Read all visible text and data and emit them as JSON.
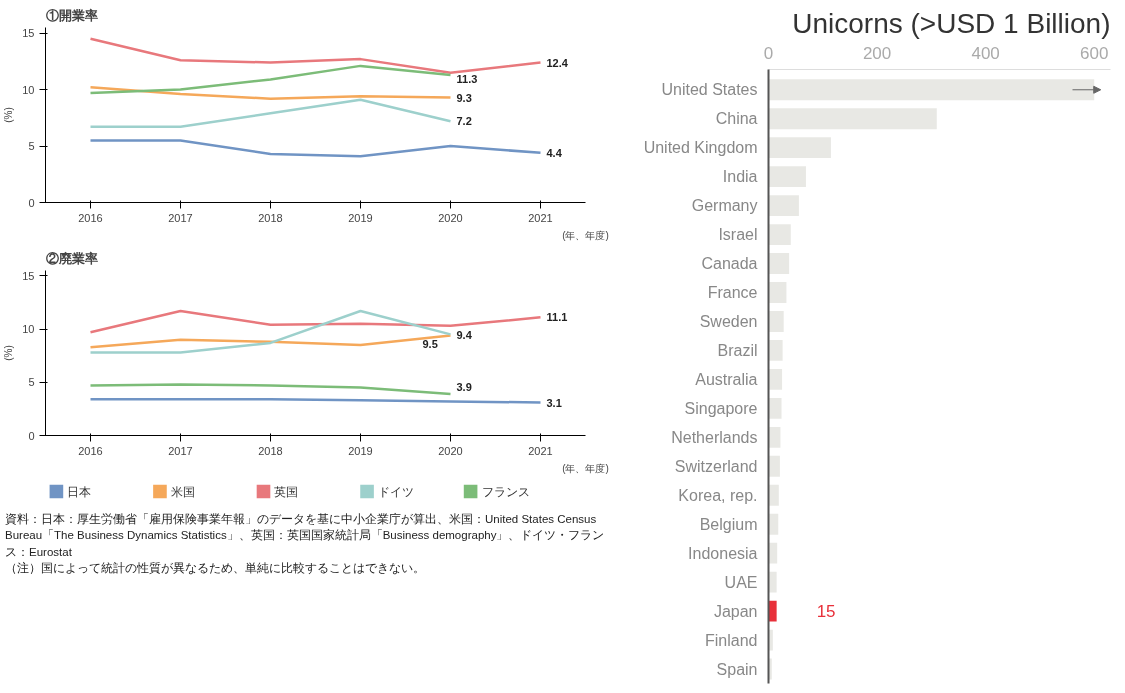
{
  "chart_data": [
    {
      "type": "line",
      "title": "①開業率",
      "ylabel": "(%)",
      "xlabel": "(年、年度)",
      "categories": [
        "2016",
        "2017",
        "2018",
        "2019",
        "2020",
        "2021"
      ],
      "ylim": [
        0,
        15.5
      ],
      "yticks": [
        0,
        5,
        10,
        15
      ],
      "legend": false,
      "grid": false,
      "series": [
        {
          "color": "#7094c4",
          "values": [
            5.5,
            5.5,
            4.3,
            4.1,
            5.0,
            4.4
          ],
          "value_labels": [
            null,
            null,
            null,
            null,
            null,
            "4.4"
          ]
        },
        {
          "color": "#f5a85a",
          "values": [
            10.2,
            9.6,
            9.2,
            9.4,
            9.3,
            null
          ],
          "value_labels": [
            null,
            null,
            null,
            null,
            "9.3",
            null
          ]
        },
        {
          "color": "#e8787c",
          "values": [
            14.5,
            12.6,
            12.4,
            12.7,
            11.5,
            12.4
          ],
          "value_labels": [
            null,
            null,
            null,
            null,
            null,
            "12.4"
          ]
        },
        {
          "color": "#9dd0cc",
          "values": [
            6.7,
            6.7,
            7.9,
            9.1,
            7.2,
            null
          ],
          "value_labels": [
            null,
            null,
            null,
            null,
            "7.2",
            null
          ]
        },
        {
          "color": "#7cbc78",
          "values": [
            9.7,
            10.0,
            10.9,
            12.1,
            11.3,
            null
          ],
          "value_labels": [
            null,
            null,
            null,
            null,
            "11.3",
            null
          ]
        }
      ]
    },
    {
      "type": "line",
      "title": "②廃業率",
      "ylabel": "(%)",
      "xlabel": "(年、年度)",
      "categories": [
        "2016",
        "2017",
        "2018",
        "2019",
        "2020",
        "2021"
      ],
      "ylim": [
        0,
        15.5
      ],
      "yticks": [
        0,
        5,
        10,
        15
      ],
      "legend": "bottom",
      "grid": false,
      "annotations": [
        "資料：日本：厚生労働省「雇用保険事業年報」のデータを基に中小企業庁が算出、米国：United States Census Bureau「The Business Dynamics Statistics」、英国：英国国家統計局「Business demography」、ドイツ・フランス：Eurostat",
        "（注）国によって統計の性質が異なるため、単純に比較することはできない。"
      ],
      "series": [
        {
          "name": "日本",
          "color": "#7094c4",
          "values": [
            3.4,
            3.4,
            3.4,
            3.3,
            3.2,
            3.1
          ],
          "value_labels": [
            null,
            null,
            null,
            null,
            null,
            "3.1"
          ]
        },
        {
          "name": "米国",
          "color": "#f5a85a",
          "values": [
            8.3,
            9.0,
            8.8,
            8.5,
            9.4,
            null
          ],
          "value_labels": [
            null,
            null,
            null,
            null,
            "9.4",
            null
          ]
        },
        {
          "name": "英国",
          "color": "#e8787c",
          "values": [
            9.7,
            11.7,
            10.4,
            10.5,
            10.3,
            11.1
          ],
          "value_labels": [
            null,
            null,
            null,
            null,
            null,
            "11.1"
          ]
        },
        {
          "name": "ドイツ",
          "color": "#9dd0cc",
          "values": [
            7.8,
            7.8,
            8.7,
            11.7,
            9.5,
            null
          ],
          "value_labels": [
            null,
            null,
            null,
            null,
            "9.5",
            null
          ]
        },
        {
          "name": "フランス",
          "color": "#7cbc78",
          "values": [
            4.7,
            4.8,
            4.7,
            4.5,
            3.9,
            null
          ],
          "value_labels": [
            null,
            null,
            null,
            null,
            "3.9",
            null
          ]
        }
      ]
    },
    {
      "type": "bar",
      "orientation": "horizontal",
      "title": "Unicorns (>USD 1 Billion)",
      "categories": [
        "United States",
        "China",
        "United Kingdom",
        "India",
        "Germany",
        "Israel",
        "Canada",
        "France",
        "Sweden",
        "Brazil",
        "Australia",
        "Singapore",
        "Netherlands",
        "Switzerland",
        "Korea, rep.",
        "Belgium",
        "Indonesia",
        "UAE",
        "Japan",
        "Finland",
        "Spain"
      ],
      "values": [
        600,
        310,
        115,
        69,
        56,
        41,
        38,
        33,
        28,
        26,
        25,
        24,
        22,
        21,
        19,
        18,
        16,
        15,
        15,
        8,
        6
      ],
      "colors": [
        "#e8e8e4",
        "#e8e8e4",
        "#e8e8e4",
        "#e8e8e4",
        "#e8e8e4",
        "#e8e8e4",
        "#e8e8e4",
        "#e8e8e4",
        "#e8e8e4",
        "#e8e8e4",
        "#e8e8e4",
        "#e8e8e4",
        "#e8e8e4",
        "#e8e8e4",
        "#e8e8e4",
        "#e8e8e4",
        "#e8e8e4",
        "#e8e8e4",
        "#e8303a",
        "#e8e8e4",
        "#e8e8e4"
      ],
      "value_labels": [
        null,
        null,
        null,
        null,
        null,
        null,
        null,
        null,
        null,
        null,
        null,
        null,
        null,
        null,
        null,
        null,
        null,
        null,
        "15",
        null,
        null
      ],
      "xlim": [
        0,
        630
      ],
      "xticks": [
        0,
        200,
        400,
        600
      ],
      "grid": false
    }
  ]
}
